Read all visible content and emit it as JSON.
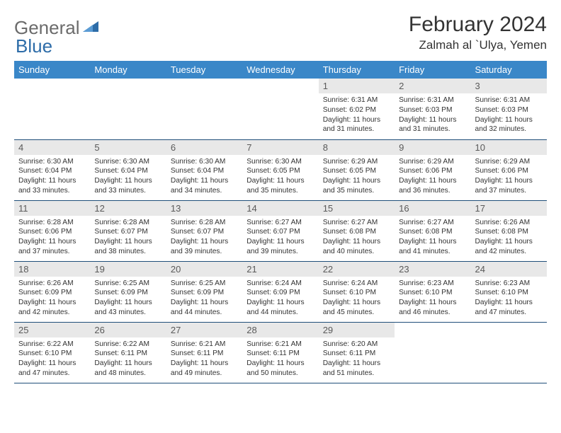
{
  "brand": {
    "part1": "General",
    "part2": "Blue"
  },
  "title": "February 2024",
  "location": "Zalmah al `Ulya, Yemen",
  "colors": {
    "header_bg": "#3a87c8",
    "header_text": "#ffffff",
    "daynum_bg": "#e8e8e8",
    "daynum_text": "#5a5a5a",
    "cell_border": "#1f4e79",
    "body_text": "#333333",
    "logo_gray": "#6b6b6b",
    "logo_blue": "#2d6ca8"
  },
  "weekdays": [
    "Sunday",
    "Monday",
    "Tuesday",
    "Wednesday",
    "Thursday",
    "Friday",
    "Saturday"
  ],
  "weeks": [
    [
      {
        "day": "",
        "lines": []
      },
      {
        "day": "",
        "lines": []
      },
      {
        "day": "",
        "lines": []
      },
      {
        "day": "",
        "lines": []
      },
      {
        "day": "1",
        "lines": [
          "Sunrise: 6:31 AM",
          "Sunset: 6:02 PM",
          "Daylight: 11 hours and 31 minutes."
        ]
      },
      {
        "day": "2",
        "lines": [
          "Sunrise: 6:31 AM",
          "Sunset: 6:03 PM",
          "Daylight: 11 hours and 31 minutes."
        ]
      },
      {
        "day": "3",
        "lines": [
          "Sunrise: 6:31 AM",
          "Sunset: 6:03 PM",
          "Daylight: 11 hours and 32 minutes."
        ]
      }
    ],
    [
      {
        "day": "4",
        "lines": [
          "Sunrise: 6:30 AM",
          "Sunset: 6:04 PM",
          "Daylight: 11 hours and 33 minutes."
        ]
      },
      {
        "day": "5",
        "lines": [
          "Sunrise: 6:30 AM",
          "Sunset: 6:04 PM",
          "Daylight: 11 hours and 33 minutes."
        ]
      },
      {
        "day": "6",
        "lines": [
          "Sunrise: 6:30 AM",
          "Sunset: 6:04 PM",
          "Daylight: 11 hours and 34 minutes."
        ]
      },
      {
        "day": "7",
        "lines": [
          "Sunrise: 6:30 AM",
          "Sunset: 6:05 PM",
          "Daylight: 11 hours and 35 minutes."
        ]
      },
      {
        "day": "8",
        "lines": [
          "Sunrise: 6:29 AM",
          "Sunset: 6:05 PM",
          "Daylight: 11 hours and 35 minutes."
        ]
      },
      {
        "day": "9",
        "lines": [
          "Sunrise: 6:29 AM",
          "Sunset: 6:06 PM",
          "Daylight: 11 hours and 36 minutes."
        ]
      },
      {
        "day": "10",
        "lines": [
          "Sunrise: 6:29 AM",
          "Sunset: 6:06 PM",
          "Daylight: 11 hours and 37 minutes."
        ]
      }
    ],
    [
      {
        "day": "11",
        "lines": [
          "Sunrise: 6:28 AM",
          "Sunset: 6:06 PM",
          "Daylight: 11 hours and 37 minutes."
        ]
      },
      {
        "day": "12",
        "lines": [
          "Sunrise: 6:28 AM",
          "Sunset: 6:07 PM",
          "Daylight: 11 hours and 38 minutes."
        ]
      },
      {
        "day": "13",
        "lines": [
          "Sunrise: 6:28 AM",
          "Sunset: 6:07 PM",
          "Daylight: 11 hours and 39 minutes."
        ]
      },
      {
        "day": "14",
        "lines": [
          "Sunrise: 6:27 AM",
          "Sunset: 6:07 PM",
          "Daylight: 11 hours and 39 minutes."
        ]
      },
      {
        "day": "15",
        "lines": [
          "Sunrise: 6:27 AM",
          "Sunset: 6:08 PM",
          "Daylight: 11 hours and 40 minutes."
        ]
      },
      {
        "day": "16",
        "lines": [
          "Sunrise: 6:27 AM",
          "Sunset: 6:08 PM",
          "Daylight: 11 hours and 41 minutes."
        ]
      },
      {
        "day": "17",
        "lines": [
          "Sunrise: 6:26 AM",
          "Sunset: 6:08 PM",
          "Daylight: 11 hours and 42 minutes."
        ]
      }
    ],
    [
      {
        "day": "18",
        "lines": [
          "Sunrise: 6:26 AM",
          "Sunset: 6:09 PM",
          "Daylight: 11 hours and 42 minutes."
        ]
      },
      {
        "day": "19",
        "lines": [
          "Sunrise: 6:25 AM",
          "Sunset: 6:09 PM",
          "Daylight: 11 hours and 43 minutes."
        ]
      },
      {
        "day": "20",
        "lines": [
          "Sunrise: 6:25 AM",
          "Sunset: 6:09 PM",
          "Daylight: 11 hours and 44 minutes."
        ]
      },
      {
        "day": "21",
        "lines": [
          "Sunrise: 6:24 AM",
          "Sunset: 6:09 PM",
          "Daylight: 11 hours and 44 minutes."
        ]
      },
      {
        "day": "22",
        "lines": [
          "Sunrise: 6:24 AM",
          "Sunset: 6:10 PM",
          "Daylight: 11 hours and 45 minutes."
        ]
      },
      {
        "day": "23",
        "lines": [
          "Sunrise: 6:23 AM",
          "Sunset: 6:10 PM",
          "Daylight: 11 hours and 46 minutes."
        ]
      },
      {
        "day": "24",
        "lines": [
          "Sunrise: 6:23 AM",
          "Sunset: 6:10 PM",
          "Daylight: 11 hours and 47 minutes."
        ]
      }
    ],
    [
      {
        "day": "25",
        "lines": [
          "Sunrise: 6:22 AM",
          "Sunset: 6:10 PM",
          "Daylight: 11 hours and 47 minutes."
        ]
      },
      {
        "day": "26",
        "lines": [
          "Sunrise: 6:22 AM",
          "Sunset: 6:11 PM",
          "Daylight: 11 hours and 48 minutes."
        ]
      },
      {
        "day": "27",
        "lines": [
          "Sunrise: 6:21 AM",
          "Sunset: 6:11 PM",
          "Daylight: 11 hours and 49 minutes."
        ]
      },
      {
        "day": "28",
        "lines": [
          "Sunrise: 6:21 AM",
          "Sunset: 6:11 PM",
          "Daylight: 11 hours and 50 minutes."
        ]
      },
      {
        "day": "29",
        "lines": [
          "Sunrise: 6:20 AM",
          "Sunset: 6:11 PM",
          "Daylight: 11 hours and 51 minutes."
        ]
      },
      {
        "day": "",
        "lines": []
      },
      {
        "day": "",
        "lines": []
      }
    ]
  ]
}
